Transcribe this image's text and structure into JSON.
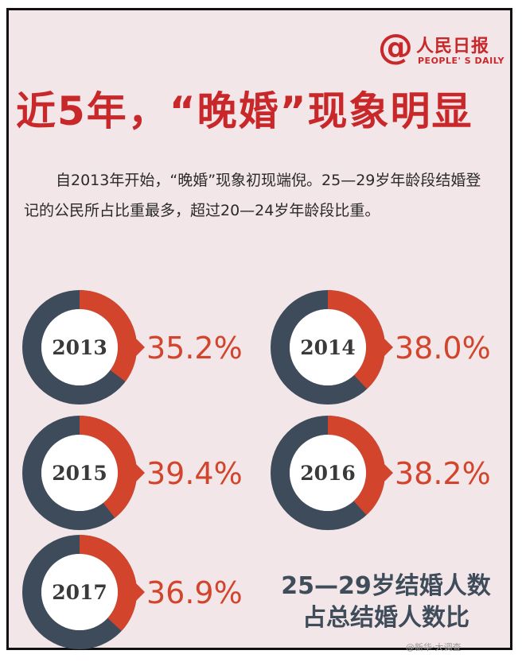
{
  "logo": {
    "symbol": "@",
    "name_cn": "人民日报",
    "name_en": "PEOPLE' S DAILY"
  },
  "title": "近5年，“晚婚”现象明显",
  "intro": "自2013年开始，“晚婚”现象初现端倪。25—29岁年龄段结婚登记的公民所占比重最多，超过20—24岁年龄段比重。",
  "caption": {
    "line1": "25—29岁结婚人数",
    "line2": "占总结婚人数比"
  },
  "watermark": "@新华·大调查",
  "colors": {
    "accent": "#d2452c",
    "ring_base": "#3e4b5a",
    "title": "#c9282b",
    "background": "#f3e6e8"
  },
  "chart_data": {
    "type": "pie",
    "variant": "donut",
    "title": "",
    "categories": [
      "2013",
      "2014",
      "2015",
      "2016",
      "2017"
    ],
    "values": [
      35.2,
      38.0,
      39.4,
      38.2,
      36.9
    ],
    "value_labels": [
      "35.2%",
      "38.0%",
      "39.4%",
      "38.2%",
      "36.9%"
    ],
    "unit": "%"
  }
}
